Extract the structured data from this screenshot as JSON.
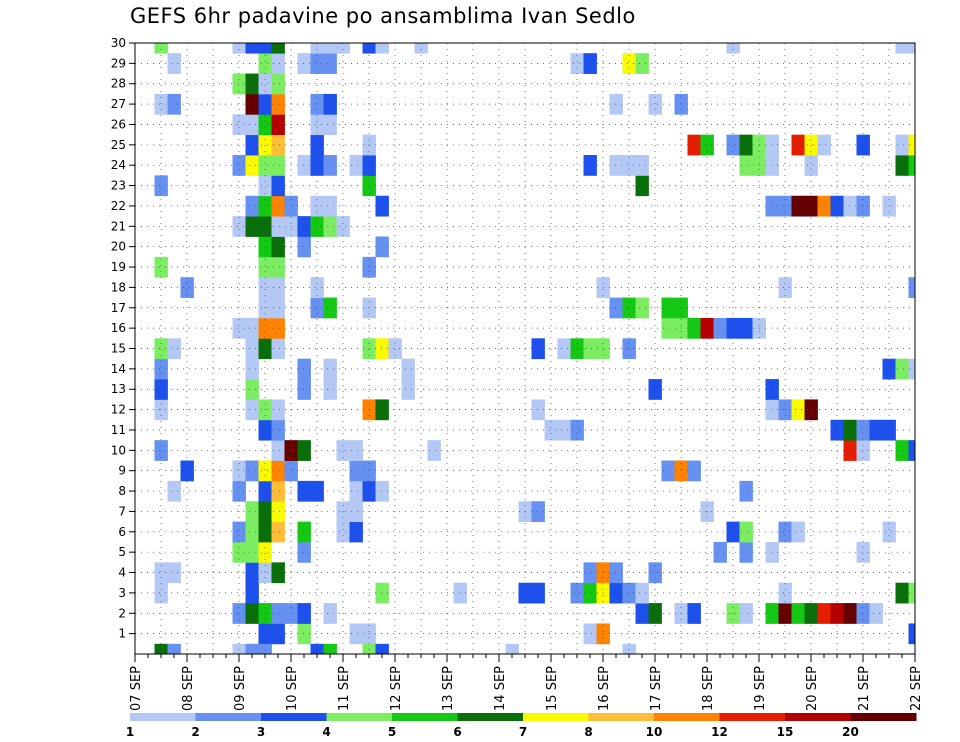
{
  "chart_data": {
    "type": "heatmap",
    "title": "GEFS 6hr padavine po ansamblima Ivan Sedlo",
    "x_labels": [
      "07 SEP",
      "08 SEP",
      "09 SEP",
      "10 SEP",
      "11 SEP",
      "12 SEP",
      "13 SEP",
      "14 SEP",
      "15 SEP",
      "16 SEP",
      "17 SEP",
      "18 SEP",
      "19 SEP",
      "20 SEP",
      "21 SEP",
      "22 SEP"
    ],
    "y_range": [
      1,
      30
    ],
    "y_tick_labels": [
      "1",
      "2",
      "3",
      "4",
      "5",
      "6",
      "7",
      "8",
      "9",
      "10",
      "11",
      "12",
      "13",
      "14",
      "15",
      "16",
      "17",
      "18",
      "19",
      "20",
      "21",
      "22",
      "23",
      "24",
      "25",
      "26",
      "27",
      "28",
      "29",
      "30"
    ],
    "time_steps": 61,
    "grid": true,
    "color_scale": {
      "levels": [
        1,
        2,
        3,
        4,
        5,
        6,
        7,
        8,
        10,
        12,
        15,
        20
      ],
      "level_labels": [
        "1",
        "2",
        "3",
        "4",
        "5",
        "6",
        "7",
        "8",
        "10",
        "12",
        "15",
        "20"
      ],
      "colors": [
        "#b4c8f5",
        "#6691f0",
        "#1e50eb",
        "#7ced63",
        "#14c814",
        "#0a6e0a",
        "#fafa00",
        "#ffbe37",
        "#ff8200",
        "#e61e00",
        "#b40000",
        "#640000"
      ]
    },
    "cells": [
      [
        1,
        10,
        3
      ],
      [
        1,
        11,
        3
      ],
      [
        1,
        13,
        4
      ],
      [
        1,
        17,
        1
      ],
      [
        1,
        18,
        1
      ],
      [
        1,
        35,
        1
      ],
      [
        1,
        36,
        9
      ],
      [
        1,
        60,
        3
      ],
      [
        2,
        8,
        2
      ],
      [
        2,
        9,
        6
      ],
      [
        2,
        10,
        5
      ],
      [
        2,
        11,
        2
      ],
      [
        2,
        12,
        2
      ],
      [
        2,
        13,
        3
      ],
      [
        2,
        15,
        1
      ],
      [
        2,
        39,
        3
      ],
      [
        2,
        40,
        6
      ],
      [
        2,
        42,
        1
      ],
      [
        2,
        43,
        3
      ],
      [
        2,
        46,
        4
      ],
      [
        2,
        47,
        1
      ],
      [
        2,
        49,
        5
      ],
      [
        2,
        50,
        12
      ],
      [
        2,
        51,
        5
      ],
      [
        2,
        52,
        6
      ],
      [
        2,
        53,
        10
      ],
      [
        2,
        54,
        11
      ],
      [
        2,
        55,
        12
      ],
      [
        2,
        56,
        2
      ],
      [
        2,
        57,
        1
      ],
      [
        3,
        2,
        1
      ],
      [
        3,
        9,
        3
      ],
      [
        3,
        19,
        4
      ],
      [
        3,
        25,
        1
      ],
      [
        3,
        30,
        3
      ],
      [
        3,
        31,
        3
      ],
      [
        3,
        34,
        2
      ],
      [
        3,
        35,
        5
      ],
      [
        3,
        36,
        7
      ],
      [
        3,
        37,
        3
      ],
      [
        3,
        38,
        2
      ],
      [
        3,
        39,
        1
      ],
      [
        3,
        50,
        1
      ],
      [
        3,
        59,
        6
      ],
      [
        3,
        60,
        4
      ],
      [
        4,
        2,
        1
      ],
      [
        4,
        3,
        1
      ],
      [
        4,
        9,
        3
      ],
      [
        4,
        10,
        1
      ],
      [
        4,
        11,
        6
      ],
      [
        4,
        35,
        2
      ],
      [
        4,
        36,
        9
      ],
      [
        4,
        37,
        2
      ],
      [
        4,
        40,
        2
      ],
      [
        5,
        8,
        4
      ],
      [
        5,
        9,
        4
      ],
      [
        5,
        10,
        7
      ],
      [
        5,
        13,
        2
      ],
      [
        5,
        45,
        2
      ],
      [
        5,
        47,
        2
      ],
      [
        5,
        49,
        1
      ],
      [
        5,
        56,
        1
      ],
      [
        6,
        8,
        2
      ],
      [
        6,
        9,
        4
      ],
      [
        6,
        10,
        6
      ],
      [
        6,
        11,
        8
      ],
      [
        6,
        13,
        5
      ],
      [
        6,
        16,
        1
      ],
      [
        6,
        17,
        3
      ],
      [
        6,
        46,
        3
      ],
      [
        6,
        47,
        4
      ],
      [
        6,
        50,
        2
      ],
      [
        6,
        51,
        1
      ],
      [
        6,
        58,
        1
      ],
      [
        7,
        9,
        4
      ],
      [
        7,
        10,
        6
      ],
      [
        7,
        11,
        7
      ],
      [
        7,
        16,
        1
      ],
      [
        7,
        17,
        1
      ],
      [
        7,
        30,
        1
      ],
      [
        7,
        31,
        2
      ],
      [
        7,
        44,
        1
      ],
      [
        8,
        3,
        1
      ],
      [
        8,
        8,
        2
      ],
      [
        8,
        10,
        3
      ],
      [
        8,
        11,
        8
      ],
      [
        8,
        13,
        3
      ],
      [
        8,
        14,
        3
      ],
      [
        8,
        17,
        1
      ],
      [
        8,
        18,
        3
      ],
      [
        8,
        19,
        1
      ],
      [
        8,
        47,
        2
      ],
      [
        9,
        4,
        3
      ],
      [
        9,
        8,
        1
      ],
      [
        9,
        9,
        2
      ],
      [
        9,
        10,
        7
      ],
      [
        9,
        11,
        9
      ],
      [
        9,
        12,
        2
      ],
      [
        9,
        17,
        2
      ],
      [
        9,
        18,
        2
      ],
      [
        9,
        41,
        2
      ],
      [
        9,
        42,
        9
      ],
      [
        9,
        43,
        2
      ],
      [
        10,
        2,
        2
      ],
      [
        10,
        11,
        1
      ],
      [
        10,
        12,
        12
      ],
      [
        10,
        13,
        6
      ],
      [
        10,
        16,
        1
      ],
      [
        10,
        17,
        1
      ],
      [
        10,
        23,
        1
      ],
      [
        10,
        55,
        10
      ],
      [
        10,
        56,
        1
      ],
      [
        10,
        59,
        5
      ],
      [
        10,
        60,
        3
      ],
      [
        11,
        10,
        3
      ],
      [
        11,
        11,
        2
      ],
      [
        11,
        32,
        1
      ],
      [
        11,
        33,
        1
      ],
      [
        11,
        34,
        2
      ],
      [
        11,
        54,
        3
      ],
      [
        11,
        55,
        6
      ],
      [
        11,
        56,
        2
      ],
      [
        11,
        57,
        3
      ],
      [
        11,
        58,
        3
      ],
      [
        12,
        2,
        1
      ],
      [
        12,
        9,
        1
      ],
      [
        12,
        10,
        4
      ],
      [
        12,
        11,
        1
      ],
      [
        12,
        18,
        9
      ],
      [
        12,
        19,
        6
      ],
      [
        12,
        31,
        1
      ],
      [
        12,
        49,
        1
      ],
      [
        12,
        50,
        2
      ],
      [
        12,
        51,
        7
      ],
      [
        12,
        52,
        12
      ],
      [
        13,
        2,
        3
      ],
      [
        13,
        9,
        4
      ],
      [
        13,
        13,
        2
      ],
      [
        13,
        15,
        1
      ],
      [
        13,
        21,
        1
      ],
      [
        13,
        40,
        3
      ],
      [
        13,
        49,
        3
      ],
      [
        14,
        2,
        2
      ],
      [
        14,
        9,
        1
      ],
      [
        14,
        13,
        2
      ],
      [
        14,
        15,
        1
      ],
      [
        14,
        21,
        1
      ],
      [
        14,
        58,
        3
      ],
      [
        14,
        59,
        4
      ],
      [
        14,
        60,
        1
      ],
      [
        15,
        2,
        4
      ],
      [
        15,
        3,
        1
      ],
      [
        15,
        9,
        1
      ],
      [
        15,
        10,
        6
      ],
      [
        15,
        11,
        1
      ],
      [
        15,
        18,
        4
      ],
      [
        15,
        19,
        7
      ],
      [
        15,
        20,
        1
      ],
      [
        15,
        31,
        3
      ],
      [
        15,
        33,
        1
      ],
      [
        15,
        34,
        5
      ],
      [
        15,
        35,
        4
      ],
      [
        15,
        36,
        4
      ],
      [
        15,
        38,
        2
      ],
      [
        16,
        8,
        1
      ],
      [
        16,
        9,
        1
      ],
      [
        16,
        10,
        9
      ],
      [
        16,
        11,
        9
      ],
      [
        16,
        41,
        4
      ],
      [
        16,
        42,
        4
      ],
      [
        16,
        43,
        5
      ],
      [
        16,
        44,
        11
      ],
      [
        16,
        45,
        2
      ],
      [
        16,
        46,
        3
      ],
      [
        16,
        47,
        3
      ],
      [
        16,
        48,
        1
      ],
      [
        17,
        10,
        1
      ],
      [
        17,
        11,
        1
      ],
      [
        17,
        14,
        2
      ],
      [
        17,
        15,
        5
      ],
      [
        17,
        18,
        1
      ],
      [
        17,
        37,
        2
      ],
      [
        17,
        38,
        5
      ],
      [
        17,
        39,
        4
      ],
      [
        17,
        41,
        5
      ],
      [
        17,
        42,
        5
      ],
      [
        18,
        4,
        2
      ],
      [
        18,
        10,
        1
      ],
      [
        18,
        11,
        1
      ],
      [
        18,
        14,
        1
      ],
      [
        18,
        36,
        1
      ],
      [
        18,
        50,
        1
      ],
      [
        18,
        60,
        2
      ],
      [
        19,
        2,
        4
      ],
      [
        19,
        10,
        4
      ],
      [
        19,
        11,
        4
      ],
      [
        19,
        18,
        2
      ],
      [
        20,
        10,
        5
      ],
      [
        20,
        11,
        6
      ],
      [
        20,
        13,
        2
      ],
      [
        20,
        19,
        2
      ],
      [
        21,
        8,
        1
      ],
      [
        21,
        9,
        6
      ],
      [
        21,
        10,
        6
      ],
      [
        21,
        11,
        1
      ],
      [
        21,
        12,
        1
      ],
      [
        21,
        13,
        3
      ],
      [
        21,
        14,
        5
      ],
      [
        21,
        15,
        4
      ],
      [
        21,
        16,
        1
      ],
      [
        22,
        9,
        2
      ],
      [
        22,
        10,
        5
      ],
      [
        22,
        11,
        9
      ],
      [
        22,
        12,
        2
      ],
      [
        22,
        14,
        1
      ],
      [
        22,
        15,
        1
      ],
      [
        22,
        19,
        3
      ],
      [
        22,
        49,
        2
      ],
      [
        22,
        50,
        2
      ],
      [
        22,
        51,
        12
      ],
      [
        22,
        52,
        12
      ],
      [
        22,
        53,
        9
      ],
      [
        22,
        54,
        3
      ],
      [
        22,
        55,
        1
      ],
      [
        22,
        56,
        2
      ],
      [
        22,
        58,
        1
      ],
      [
        23,
        2,
        2
      ],
      [
        23,
        10,
        1
      ],
      [
        23,
        11,
        3
      ],
      [
        23,
        18,
        5
      ],
      [
        23,
        39,
        6
      ],
      [
        24,
        8,
        2
      ],
      [
        24,
        9,
        7
      ],
      [
        24,
        10,
        4
      ],
      [
        24,
        11,
        4
      ],
      [
        24,
        13,
        1
      ],
      [
        24,
        14,
        3
      ],
      [
        24,
        15,
        2
      ],
      [
        24,
        17,
        1
      ],
      [
        24,
        18,
        3
      ],
      [
        24,
        35,
        3
      ],
      [
        24,
        37,
        1
      ],
      [
        24,
        38,
        1
      ],
      [
        24,
        39,
        1
      ],
      [
        24,
        47,
        4
      ],
      [
        24,
        48,
        4
      ],
      [
        24,
        49,
        1
      ],
      [
        24,
        52,
        1
      ],
      [
        24,
        59,
        6
      ],
      [
        24,
        60,
        5
      ],
      [
        25,
        9,
        3
      ],
      [
        25,
        10,
        7
      ],
      [
        25,
        11,
        8
      ],
      [
        25,
        14,
        3
      ],
      [
        25,
        18,
        1
      ],
      [
        25,
        43,
        10
      ],
      [
        25,
        44,
        5
      ],
      [
        25,
        46,
        2
      ],
      [
        25,
        47,
        6
      ],
      [
        25,
        48,
        4
      ],
      [
        25,
        49,
        1
      ],
      [
        25,
        51,
        10
      ],
      [
        25,
        52,
        7
      ],
      [
        25,
        53,
        1
      ],
      [
        25,
        56,
        3
      ],
      [
        25,
        59,
        1
      ],
      [
        25,
        60,
        7
      ],
      [
        26,
        8,
        1
      ],
      [
        26,
        9,
        1
      ],
      [
        26,
        10,
        5
      ],
      [
        26,
        11,
        11
      ],
      [
        26,
        14,
        1
      ],
      [
        26,
        15,
        1
      ],
      [
        27,
        2,
        1
      ],
      [
        27,
        3,
        2
      ],
      [
        27,
        9,
        12
      ],
      [
        27,
        10,
        3
      ],
      [
        27,
        11,
        9
      ],
      [
        27,
        14,
        2
      ],
      [
        27,
        15,
        3
      ],
      [
        27,
        37,
        1
      ],
      [
        27,
        40,
        1
      ],
      [
        27,
        42,
        2
      ],
      [
        28,
        8,
        4
      ],
      [
        28,
        9,
        6
      ],
      [
        28,
        10,
        1
      ],
      [
        28,
        11,
        4
      ],
      [
        29,
        3,
        1
      ],
      [
        29,
        10,
        4
      ],
      [
        29,
        11,
        1
      ],
      [
        29,
        13,
        1
      ],
      [
        29,
        14,
        2
      ],
      [
        29,
        15,
        2
      ],
      [
        29,
        34,
        1
      ],
      [
        29,
        35,
        3
      ],
      [
        29,
        38,
        7
      ],
      [
        29,
        39,
        4
      ],
      [
        30,
        2,
        4
      ],
      [
        30,
        8,
        1
      ],
      [
        30,
        9,
        3
      ],
      [
        30,
        10,
        3
      ],
      [
        30,
        11,
        6
      ],
      [
        30,
        14,
        1
      ],
      [
        30,
        15,
        1
      ],
      [
        30,
        16,
        1
      ],
      [
        30,
        18,
        3
      ],
      [
        30,
        19,
        1
      ],
      [
        30,
        22,
        1
      ],
      [
        30,
        46,
        1
      ],
      [
        30,
        59,
        1
      ],
      [
        30,
        60,
        1
      ],
      [
        0,
        2,
        6
      ],
      [
        0,
        3,
        2
      ],
      [
        0,
        8,
        1
      ],
      [
        0,
        9,
        2
      ],
      [
        0,
        10,
        2
      ],
      [
        0,
        14,
        3
      ],
      [
        0,
        15,
        5
      ],
      [
        0,
        18,
        4
      ],
      [
        0,
        19,
        3
      ],
      [
        0,
        29,
        1
      ],
      [
        0,
        38,
        1
      ]
    ]
  }
}
